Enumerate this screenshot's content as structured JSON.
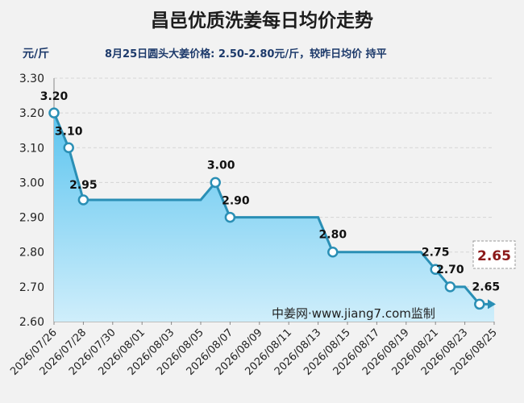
{
  "header": {
    "title": "昌邑优质洗姜每日均价走势",
    "unit": "元/斤",
    "subtitle": "8月25日圆头大姜价格: 2.50-2.80元/斤，较昨日均价 持平"
  },
  "watermark": "中姜网·www.jiang7.com监制",
  "latest_label": "2.65",
  "colors": {
    "line": "#2a8fb5",
    "area_top": "#5bc4ef",
    "area_bottom": "#cfeefb",
    "latest_text": "#8b1a1a"
  },
  "chart_data": {
    "type": "area",
    "title": "昌邑优质洗姜每日均价走势",
    "ylabel": "元/斤",
    "xlabel": "",
    "ylim": [
      2.6,
      3.3
    ],
    "yticks": [
      "2.60",
      "2.70",
      "2.80",
      "2.90",
      "3.00",
      "3.10",
      "3.20",
      "3.30"
    ],
    "xticks": [
      "2026/07/26",
      "2026/07/28",
      "2026/07/30",
      "2026/08/01",
      "2026/08/03",
      "2026/08/05",
      "2026/08/07",
      "2026/08/09",
      "2026/08/11",
      "2026/08/13",
      "2026/08/15",
      "2026/08/17",
      "2026/08/19",
      "2026/08/21",
      "2026/08/23",
      "2026/08/25"
    ],
    "grid": true,
    "points": [
      {
        "x": "2026/07/26",
        "y": 3.2
      },
      {
        "x": "2026/07/27",
        "y": 3.1
      },
      {
        "x": "2026/07/28",
        "y": 2.95
      },
      {
        "x": "2026/08/05",
        "y": 2.95
      },
      {
        "x": "2026/08/06",
        "y": 3.0
      },
      {
        "x": "2026/08/07",
        "y": 2.9
      },
      {
        "x": "2026/08/13",
        "y": 2.9
      },
      {
        "x": "2026/08/14",
        "y": 2.8
      },
      {
        "x": "2026/08/20",
        "y": 2.8
      },
      {
        "x": "2026/08/21",
        "y": 2.75
      },
      {
        "x": "2026/08/22",
        "y": 2.7
      },
      {
        "x": "2026/08/23",
        "y": 2.7
      },
      {
        "x": "2026/08/24",
        "y": 2.65
      },
      {
        "x": "2026/08/25",
        "y": 2.65
      }
    ],
    "labeled_points": [
      {
        "x": "2026/07/26",
        "y": 3.2,
        "label": "3.20"
      },
      {
        "x": "2026/07/27",
        "y": 3.1,
        "label": "3.10"
      },
      {
        "x": "2026/07/28",
        "y": 2.95,
        "label": "2.95"
      },
      {
        "x": "2026/08/06",
        "y": 3.0,
        "label": "3.00"
      },
      {
        "x": "2026/08/07",
        "y": 2.9,
        "label": "2.90"
      },
      {
        "x": "2026/08/14",
        "y": 2.8,
        "label": "2.80"
      },
      {
        "x": "2026/08/21",
        "y": 2.75,
        "label": "2.75"
      },
      {
        "x": "2026/08/22",
        "y": 2.7,
        "label": "2.70"
      },
      {
        "x": "2026/08/24",
        "y": 2.65,
        "label": "2.65"
      }
    ]
  }
}
